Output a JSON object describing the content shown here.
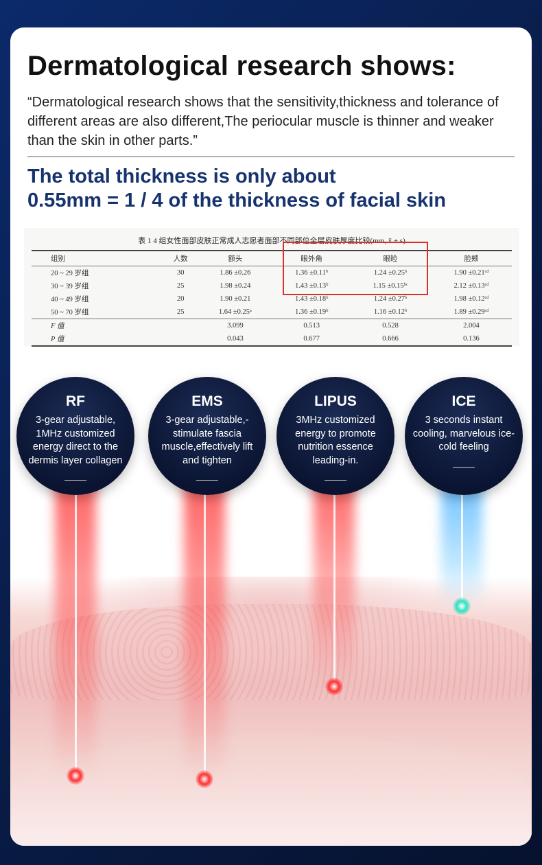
{
  "heading": "Dermatological research shows:",
  "quote": "“Dermatological research shows that the sensitivity,thickness and tolerance of different areas are also different,The periocular muscle is thinner and weaker than the skin in other parts.”",
  "subheading_line1": "The total thickness is only about",
  "subheading_line2": "0.55mm = 1 / 4 of the thickness of facial skin",
  "table": {
    "caption": "表 1   4 组女性面部皮肤正常成人志愿者面部不同部位全层皮肤厚度比较(mm, x̄ ± s)",
    "headers": [
      "组别",
      "人数",
      "额头",
      "眼外角",
      "眼睑",
      "脸颊"
    ],
    "rows": [
      [
        "20 ~ 29 岁组",
        "30",
        "1.86 ±0.26",
        "1.36 ±0.11ᵇ",
        "1.24 ±0.25ᵇ",
        "1.90 ±0.21ᶜᵈ"
      ],
      [
        "30 ~ 39 岁组",
        "25",
        "1.98 ±0.24",
        "1.43 ±0.13ᵇ",
        "1.15 ±0.15ᵇᶜ",
        "2.12 ±0.13ᶜᵈ"
      ],
      [
        "40 ~ 49 岁组",
        "20",
        "1.90 ±0.21",
        "1.43 ±0.18ᵇ",
        "1.24 ±0.27ᵇ",
        "1.98 ±0.12ᶜᵈ"
      ],
      [
        "50 ~ 70 岁组",
        "25",
        "1.64 ±0.25ᵃ",
        "1.36 ±0.19ᵇ",
        "1.16 ±0.12ᵇ",
        "1.89 ±0.29ᶜᵈ"
      ],
      [
        "F 值",
        "",
        "3.099",
        "0.513",
        "0.528",
        "2.004"
      ],
      [
        "P 值",
        "",
        "0.043",
        "0.677",
        "0.666",
        "0.136"
      ]
    ],
    "highlight_color": "#d8312a"
  },
  "features": [
    {
      "title": "RF",
      "desc": "3-gear adjustable, 1MHz customized energy direct to the dermis layer collagen",
      "beam_color": "#ff2828"
    },
    {
      "title": "EMS",
      "desc": "3-gear adjustable,-stimulate fascia muscle,effectively lift and tighten",
      "beam_color": "#ff2828"
    },
    {
      "title": "LIPUS",
      "desc": "3MHz customized energy to promote nutrition essence leading-in.",
      "beam_color": "#ff2828"
    },
    {
      "title": "ICE",
      "desc": "3 seconds instant cooling, marvelous ice-cold feeling",
      "beam_color": "#3cb0ff"
    }
  ]
}
